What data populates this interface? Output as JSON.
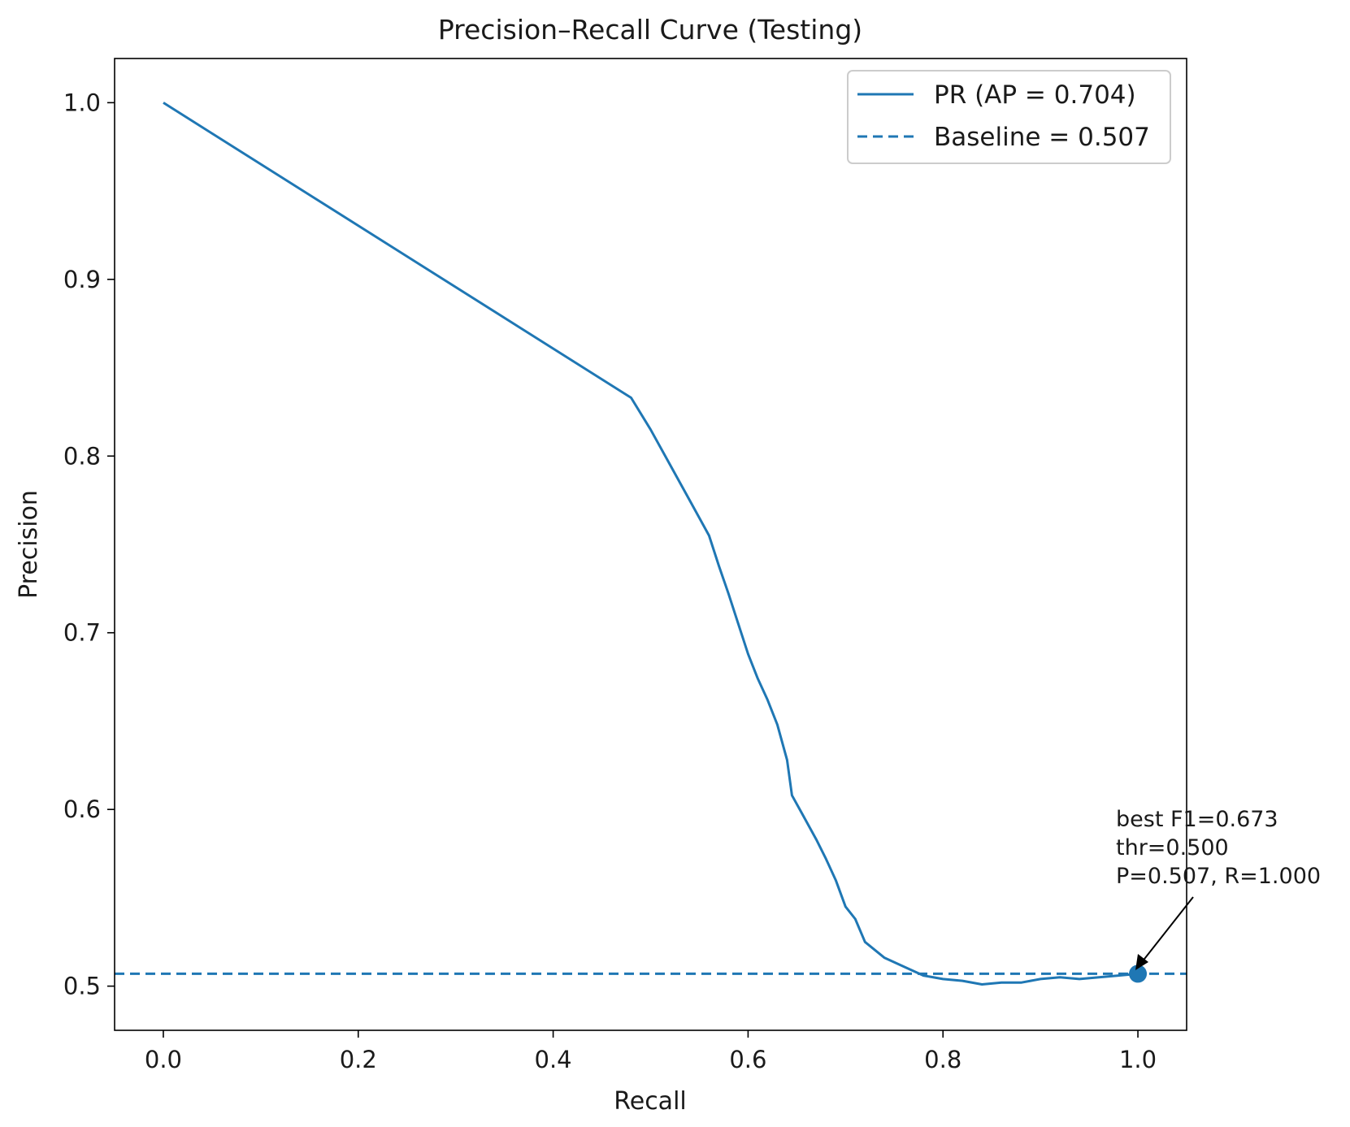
{
  "chart_data": {
    "type": "line",
    "title": "Precision–Recall Curve (Testing)",
    "xlabel": "Recall",
    "ylabel": "Precision",
    "xlim": [
      -0.05,
      1.05
    ],
    "ylim": [
      0.475,
      1.025
    ],
    "xticks": [
      0.0,
      0.2,
      0.4,
      0.6,
      0.8,
      1.0
    ],
    "xtick_labels": [
      "0.0",
      "0.2",
      "0.4",
      "0.6",
      "0.8",
      "1.0"
    ],
    "yticks": [
      0.5,
      0.6,
      0.7,
      0.8,
      0.9,
      1.0
    ],
    "ytick_labels": [
      "0.5",
      "0.6",
      "0.7",
      "0.8",
      "0.9",
      "1.0"
    ],
    "grid": false,
    "legend_position": "upper right",
    "series": [
      {
        "name": "PR (AP = 0.704)",
        "style": "solid",
        "color": "#1f77b4",
        "x": [
          0.0,
          0.48,
          0.5,
          0.52,
          0.54,
          0.56,
          0.57,
          0.58,
          0.59,
          0.6,
          0.61,
          0.62,
          0.63,
          0.64,
          0.645,
          0.655,
          0.67,
          0.68,
          0.69,
          0.7,
          0.71,
          0.72,
          0.74,
          0.76,
          0.78,
          0.8,
          0.82,
          0.84,
          0.86,
          0.88,
          0.9,
          0.92,
          0.94,
          0.96,
          0.98,
          1.0
        ],
        "y": [
          1.0,
          0.833,
          0.815,
          0.795,
          0.775,
          0.755,
          0.738,
          0.722,
          0.705,
          0.688,
          0.674,
          0.662,
          0.648,
          0.628,
          0.608,
          0.598,
          0.583,
          0.572,
          0.56,
          0.545,
          0.538,
          0.525,
          0.516,
          0.511,
          0.506,
          0.504,
          0.503,
          0.501,
          0.502,
          0.502,
          0.504,
          0.505,
          0.504,
          0.505,
          0.506,
          0.507
        ]
      },
      {
        "name": "Baseline = 0.507",
        "style": "dashed",
        "color": "#1f77b4",
        "y_constant": 0.507
      }
    ],
    "highlight_point": {
      "x": 1.0,
      "y": 0.507
    },
    "annotation": {
      "lines": [
        "best F1=0.673",
        "thr=0.500",
        "P=0.507, R=1.000"
      ]
    }
  },
  "colors": {
    "series": "#1f77b4",
    "axes": "#000000",
    "text": "#1a1a1a",
    "legend_border": "#cccccc"
  }
}
